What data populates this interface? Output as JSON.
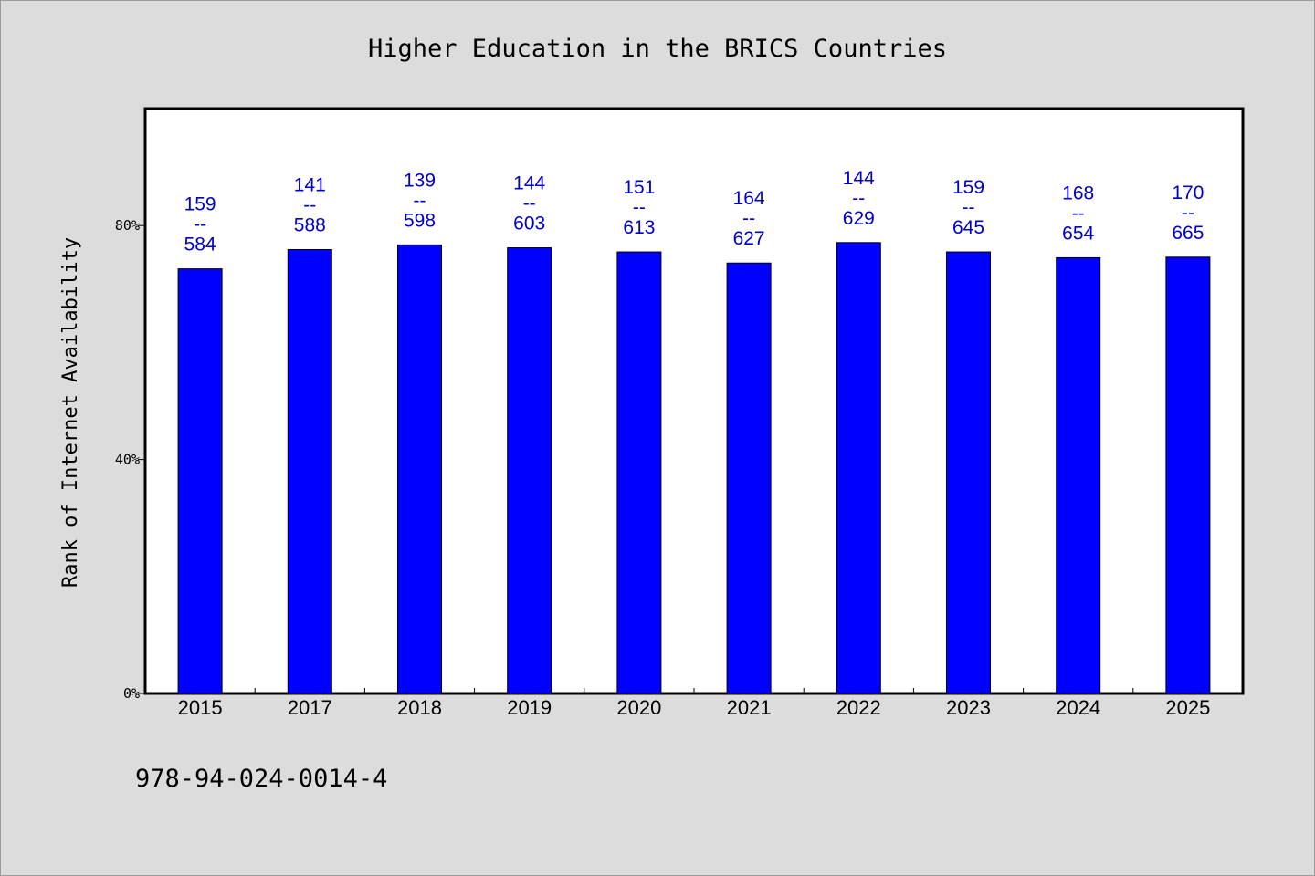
{
  "chart_data": {
    "type": "bar",
    "title": "Higher Education in the BRICS Countries",
    "xlabel": "",
    "ylabel": "Rank of Internet Availability",
    "categories": [
      "2015",
      "2017",
      "2018",
      "2019",
      "2020",
      "2021",
      "2022",
      "2023",
      "2024",
      "2025"
    ],
    "series": [
      {
        "values": [
          72.6,
          75.9,
          76.7,
          76.2,
          75.5,
          73.6,
          77.1,
          75.5,
          74.5,
          74.6
        ]
      }
    ],
    "labels": [
      [
        "159",
        "--",
        "584"
      ],
      [
        "141",
        "--",
        "588"
      ],
      [
        "139",
        "--",
        "598"
      ],
      [
        "144",
        "--",
        "603"
      ],
      [
        "151",
        "--",
        "613"
      ],
      [
        "164",
        "--",
        "627"
      ],
      [
        "144",
        "--",
        "629"
      ],
      [
        "159",
        "--",
        "645"
      ],
      [
        "168",
        "--",
        "654"
      ],
      [
        "170",
        "--",
        "665"
      ]
    ],
    "ylim": [
      0,
      100
    ],
    "yticks": [
      0,
      40,
      80
    ],
    "ytick_labels": [
      "0%",
      "40%",
      "80%"
    ],
    "grid": false,
    "colors": {
      "bar": "#0000ff",
      "label": "#0000cc",
      "background": "#dcdcdc",
      "plot": "#ffffff"
    }
  },
  "footer": {
    "isbn": "978-94-024-0014-4"
  }
}
